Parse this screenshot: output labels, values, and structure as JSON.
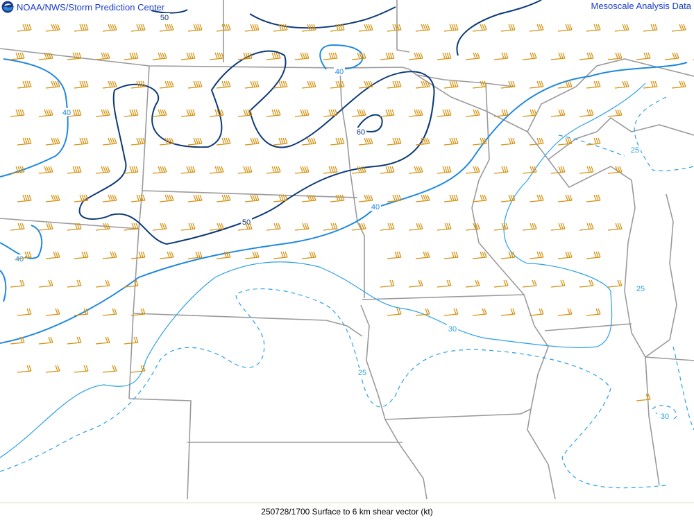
{
  "header": {
    "org": "NOAA/NWS/Storm Prediction Center",
    "product": "Mesoscale Analysis Data"
  },
  "footer": {
    "caption": "250728/1700 Surface to 6 km shear vector (kt)"
  },
  "colors": {
    "barb": "#d4900c",
    "border": "#9a9a9a",
    "contour_strong": "#0c3a78",
    "contour_mid": "#1e88e0",
    "contour_weak": "#2aa0e8"
  },
  "contour_labels": [
    "50",
    "40",
    "40",
    "60",
    "50",
    "40",
    "40",
    "25",
    "25",
    "30",
    "25",
    "30"
  ],
  "icons": {
    "logo": "noaa-logo-icon",
    "barb": "wind-barb-icon"
  }
}
